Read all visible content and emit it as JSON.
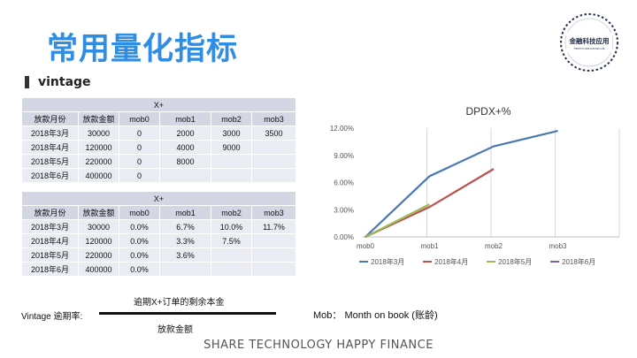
{
  "page": {
    "title": "常用量化指标",
    "section_label": "vintage",
    "logo_text": "金融科技应用",
    "logo_sub": "FINTECH APPLICATION LAB",
    "footer": "SHARE TECHNOLOGY HAPPY FINANCE"
  },
  "colors": {
    "title": "#2f8de4",
    "table_head": "#d2d7e3",
    "table_row": "#e9ecf2",
    "series": [
      "#4a78b0",
      "#c0504d",
      "#9bbb59",
      "#7f5fa8"
    ]
  },
  "table1": {
    "caption": "X+",
    "headers": [
      "放款月份",
      "放款金额",
      "mob0",
      "mob1",
      "mob2",
      "mob3"
    ],
    "rows": [
      [
        "2018年3月",
        "30000",
        "0",
        "2000",
        "3000",
        "3500"
      ],
      [
        "2018年4月",
        "120000",
        "0",
        "4000",
        "9000",
        ""
      ],
      [
        "2018年5月",
        "220000",
        "0",
        "8000",
        "",
        ""
      ],
      [
        "2018年6月",
        "400000",
        "0",
        "",
        "",
        ""
      ]
    ]
  },
  "table2": {
    "caption": "X+",
    "headers": [
      "放款月份",
      "放款金额",
      "mob0",
      "mob1",
      "mob2",
      "mob3"
    ],
    "rows": [
      [
        "2018年3月",
        "30000",
        "0.0%",
        "6.7%",
        "10.0%",
        "11.7%"
      ],
      [
        "2018年4月",
        "120000",
        "0.0%",
        "3.3%",
        "7.5%",
        ""
      ],
      [
        "2018年5月",
        "220000",
        "0.0%",
        "3.6%",
        "",
        ""
      ],
      [
        "2018年6月",
        "400000",
        "0.0%",
        "",
        "",
        ""
      ]
    ]
  },
  "formula": {
    "label": "Vintage 逾期率:",
    "numerator": "逾期X+订单的剩余本金",
    "denominator": "放款金额",
    "mob_note": "Mob： Month on book (账龄)"
  },
  "chart_data": {
    "type": "line",
    "title": "DPDX+%",
    "categories": [
      "mob0",
      "mob1",
      "mob2",
      "mob3"
    ],
    "ylim": [
      0,
      0.12
    ],
    "yticks": [
      0,
      0.03,
      0.06,
      0.09,
      0.12
    ],
    "ytick_labels": [
      "0.00%",
      "3.00%",
      "6.00%",
      "9.00%",
      "12.00%"
    ],
    "grid": "vertical",
    "legend_position": "bottom",
    "series": [
      {
        "name": "2018年3月",
        "values": [
          0.0,
          0.067,
          0.1,
          0.117
        ]
      },
      {
        "name": "2018年4月",
        "values": [
          0.0,
          0.033,
          0.075,
          null
        ]
      },
      {
        "name": "2018年5月",
        "values": [
          0.0,
          0.036,
          null,
          null
        ]
      },
      {
        "name": "2018年6月",
        "values": [
          0.0,
          null,
          null,
          null
        ]
      }
    ]
  }
}
